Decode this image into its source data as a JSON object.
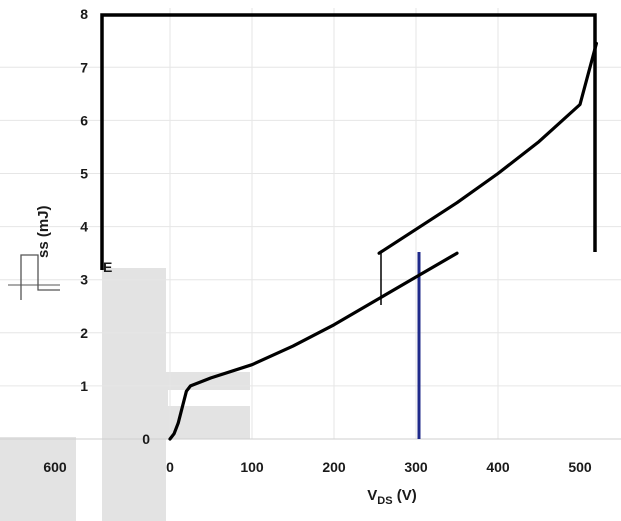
{
  "chart_data": {
    "type": "line",
    "xlabel": {
      "main": "V",
      "sub": "DS",
      "unit": " (V)"
    },
    "ylabel": {
      "sub": "ss (mJ)",
      "fragment": "E"
    },
    "xlim": [
      0,
      520
    ],
    "ylim": [
      0,
      8
    ],
    "xticks": [
      "0",
      "100",
      "200",
      "300",
      "400",
      "500"
    ],
    "yticks": [
      "0",
      "1",
      "2",
      "3",
      "4",
      "5",
      "6",
      "7",
      "8"
    ],
    "extra_tick": "600",
    "grid": true,
    "series": [
      {
        "x": [
          0,
          5,
          10,
          15,
          20,
          25,
          50,
          100,
          150,
          200,
          250,
          300,
          350
        ],
        "y": [
          0,
          0.1,
          0.3,
          0.6,
          0.9,
          1.0,
          1.15,
          1.4,
          1.75,
          2.15,
          2.6,
          3.05,
          3.5
        ]
      },
      {
        "x": [
          255,
          300,
          350,
          400,
          450,
          500,
          520
        ],
        "y": [
          3.5,
          3.95,
          4.45,
          5.0,
          5.6,
          6.3,
          7.45
        ]
      }
    ],
    "colors": {
      "line": "#000000",
      "grid": "#e6e6e6",
      "panel": "#e3e3e3",
      "accent": "#1f2a8a"
    }
  }
}
